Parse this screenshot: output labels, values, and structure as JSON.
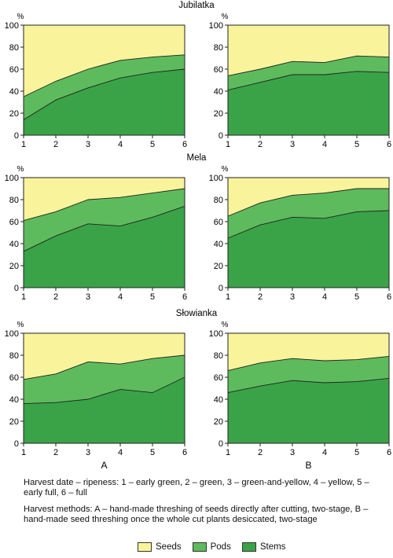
{
  "colors": {
    "seeds": "#f9f49b",
    "pods": "#5dbb5d",
    "stems": "#3aa348",
    "line": "#222222"
  },
  "y_unit": "%",
  "method_labels": [
    "A",
    "B"
  ],
  "notes": {
    "harvest_date": "Harvest date – ripeness: 1 – early green, 2 – green, 3 – green-and-yellow, 4 – yellow, 5 – early full, 6 – full",
    "harvest_methods": "Harvest methods: A – hand-made threshing of seeds directly after cutting, two-stage, B – hand-made seed threshing once the whole cut plants desiccated, two-stage"
  },
  "legend": [
    {
      "label": "Seeds",
      "color": "#f9f49b"
    },
    {
      "label": "Pods",
      "color": "#5dbb5d"
    },
    {
      "label": "Stems",
      "color": "#3aa348"
    }
  ],
  "chart_data": [
    {
      "type": "area",
      "row_title": "Jubilatka",
      "method": "A",
      "x": [
        1,
        2,
        3,
        4,
        5,
        6
      ],
      "ylim": [
        0,
        100
      ],
      "series": [
        {
          "name": "Stems",
          "values": [
            14,
            32,
            43,
            52,
            57,
            60
          ]
        },
        {
          "name": "Pods",
          "values": [
            35,
            49,
            60,
            68,
            71,
            73
          ]
        },
        {
          "name": "Seeds",
          "values": [
            100,
            100,
            100,
            100,
            100,
            100
          ]
        }
      ]
    },
    {
      "type": "area",
      "row_title": "",
      "method": "B",
      "x": [
        1,
        2,
        3,
        4,
        5,
        6
      ],
      "ylim": [
        0,
        100
      ],
      "series": [
        {
          "name": "Stems",
          "values": [
            41,
            48,
            55,
            55,
            58,
            57
          ]
        },
        {
          "name": "Pods",
          "values": [
            54,
            60,
            67,
            66,
            72,
            71
          ]
        },
        {
          "name": "Seeds",
          "values": [
            100,
            100,
            100,
            100,
            100,
            100
          ]
        }
      ]
    },
    {
      "type": "area",
      "row_title": "Mela",
      "method": "A",
      "x": [
        1,
        2,
        3,
        4,
        5,
        6
      ],
      "ylim": [
        0,
        100
      ],
      "series": [
        {
          "name": "Stems",
          "values": [
            33,
            47,
            58,
            56,
            64,
            74
          ]
        },
        {
          "name": "Pods",
          "values": [
            61,
            69,
            80,
            82,
            86,
            90
          ]
        },
        {
          "name": "Seeds",
          "values": [
            100,
            100,
            100,
            100,
            100,
            100
          ]
        }
      ]
    },
    {
      "type": "area",
      "row_title": "",
      "method": "B",
      "x": [
        1,
        2,
        3,
        4,
        5,
        6
      ],
      "ylim": [
        0,
        100
      ],
      "series": [
        {
          "name": "Stems",
          "values": [
            45,
            57,
            64,
            63,
            69,
            70
          ]
        },
        {
          "name": "Pods",
          "values": [
            65,
            77,
            84,
            86,
            90,
            90
          ]
        },
        {
          "name": "Seeds",
          "values": [
            100,
            100,
            100,
            100,
            100,
            100
          ]
        }
      ]
    },
    {
      "type": "area",
      "row_title": "Słowianka",
      "method": "A",
      "x": [
        1,
        2,
        3,
        4,
        5,
        6
      ],
      "ylim": [
        0,
        100
      ],
      "series": [
        {
          "name": "Stems",
          "values": [
            36,
            37,
            40,
            49,
            46,
            60
          ]
        },
        {
          "name": "Pods",
          "values": [
            58,
            63,
            74,
            72,
            77,
            80
          ]
        },
        {
          "name": "Seeds",
          "values": [
            100,
            100,
            100,
            100,
            100,
            100
          ]
        }
      ]
    },
    {
      "type": "area",
      "row_title": "",
      "method": "B",
      "x": [
        1,
        2,
        3,
        4,
        5,
        6
      ],
      "ylim": [
        0,
        100
      ],
      "series": [
        {
          "name": "Stems",
          "values": [
            46,
            52,
            57,
            55,
            56,
            59
          ]
        },
        {
          "name": "Pods",
          "values": [
            66,
            73,
            77,
            75,
            76,
            79
          ]
        },
        {
          "name": "Seeds",
          "values": [
            100,
            100,
            100,
            100,
            100,
            100
          ]
        }
      ]
    }
  ]
}
